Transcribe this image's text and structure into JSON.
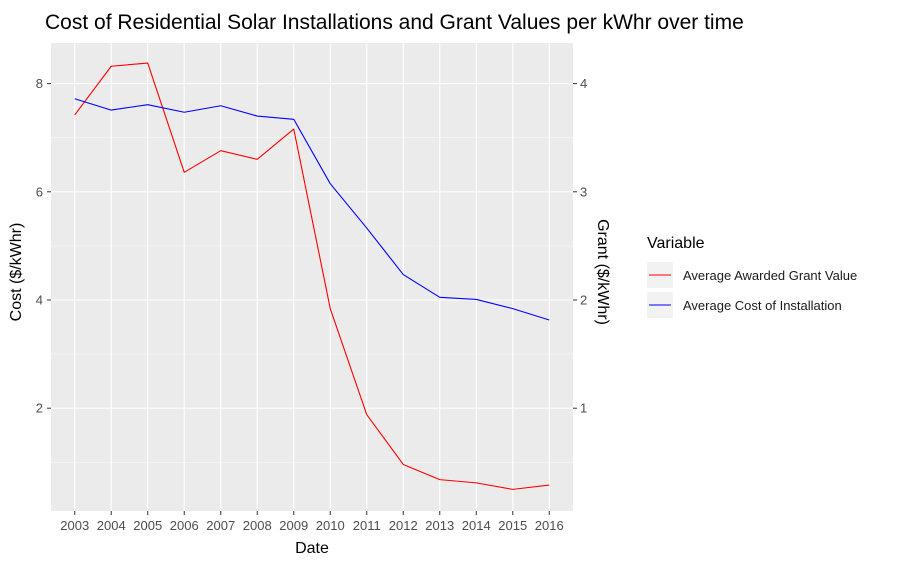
{
  "chart_data": {
    "type": "line",
    "title": "Cost of Residential Solar Installations and Grant Values per kWhr over time",
    "xlabel": "Date",
    "ylabel": "Cost ($/kWhr)",
    "ylabel_right": "Grant ($/kWhr)",
    "x": [
      2003,
      2004,
      2005,
      2006,
      2007,
      2008,
      2009,
      2010,
      2011,
      2012,
      2013,
      2014,
      2015,
      2016
    ],
    "x_tick_labels": [
      "2003",
      "2004",
      "2005",
      "2006",
      "2007",
      "2008",
      "2009",
      "2010",
      "2011",
      "2012",
      "2013",
      "2014",
      "2015",
      "2016"
    ],
    "ylim": [
      0.1,
      8.75
    ],
    "yticks": [
      2,
      4,
      6,
      8
    ],
    "ytick_labels": [
      "2",
      "4",
      "6",
      "8"
    ],
    "y2lim": [
      0.05,
      4.375
    ],
    "y2ticks": [
      1,
      2,
      3,
      4
    ],
    "y2tick_labels": [
      "1",
      "2",
      "3",
      "4"
    ],
    "grid": true,
    "legend": {
      "title": "Variable",
      "position": "right",
      "entries": [
        "Average Awarded Grant Value",
        "Average Cost of Installation"
      ]
    },
    "series": [
      {
        "name": "Average Awarded Grant Value",
        "axis": "right",
        "color": "#ff0000",
        "values": [
          3.71,
          4.16,
          4.19,
          3.18,
          3.38,
          3.3,
          3.58,
          1.92,
          0.94,
          0.48,
          0.34,
          0.31,
          0.25,
          0.29
        ]
      },
      {
        "name": "Average Cost of Installation",
        "axis": "left",
        "color": "#0000ff",
        "values": [
          7.72,
          7.51,
          7.61,
          7.47,
          7.59,
          7.4,
          7.34,
          6.15,
          5.33,
          4.47,
          4.05,
          4.01,
          3.84,
          3.63
        ]
      }
    ],
    "colors": {
      "panel_background": "#ebebeb",
      "grid_major": "#ffffff",
      "text": "#000000",
      "tick_text": "#4d4d4d"
    }
  }
}
